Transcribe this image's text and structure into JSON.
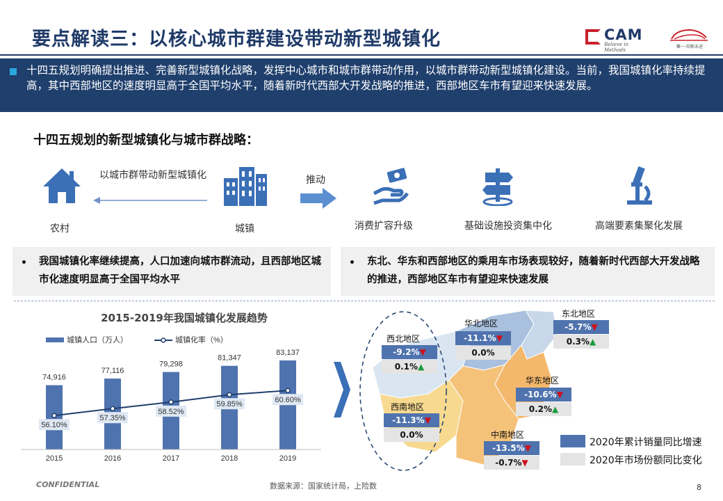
{
  "title": "要点解读三：以核心城市群建设带动新型城镇化",
  "logo": {
    "text": "CAM",
    "tagline": "Believe in Methods",
    "second_tagline": "聚一·闳新未迹"
  },
  "banner_text": "十四五规划明确提出推进、完善新型城镇化战略，发挥中心城市和城市群带动作用，以城市群带动新型城镇化建设。当前，我国城镇化率持续提高，其中西部地区的速度明显高于全国平均水平，随着新时代西部大开发战略的推进，西部地区车市有望迎来快速发展。",
  "section_title": "十四五规划的新型城镇化与城市群战略：",
  "flow": {
    "rural_label": "农村",
    "town_label": "城镇",
    "arrow_text": "以城市群带动新型城镇化",
    "push_label": "推动",
    "items": [
      "消费扩容升级",
      "基础设施投资集中化",
      "高端要素集聚化发展"
    ]
  },
  "notes": {
    "left": "我国城镇化率继续提高，人口加速向城市群流动，且西部地区城市化速度明显高于全国平均水平",
    "right": "东北、华东和西部地区的乘用车市场表现较好，随着新时代西部大开发战略的推进，西部地区车市有望迎来快速发展"
  },
  "chart_data": {
    "type": "bar",
    "title": "2015-2019年我国城镇化发展趋势",
    "categories": [
      "2015",
      "2016",
      "2017",
      "2018",
      "2019"
    ],
    "series": [
      {
        "name": "城镇人口（万人）",
        "type": "bar",
        "values": [
          74916,
          77116,
          79298,
          81347,
          83137
        ],
        "labels": [
          "74,916",
          "77,116",
          "79,298",
          "81,347",
          "83,137"
        ],
        "color": "#4f73ae"
      },
      {
        "name": "城镇化率（%）",
        "type": "line",
        "values": [
          56.1,
          57.35,
          58.52,
          59.85,
          60.6
        ],
        "labels": [
          "56.10%",
          "57.35%",
          "58.52%",
          "59.85%",
          "60.60%"
        ],
        "color": "#1f3f6c"
      }
    ],
    "xlabel": "",
    "ylabel": "",
    "legend_position": "top",
    "grid": false
  },
  "map": {
    "regions": [
      {
        "name": "东北地区",
        "sales_growth": "-5.7%",
        "sales_dir": "down",
        "share_change": "0.3%",
        "share_dir": "up"
      },
      {
        "name": "华北地区",
        "sales_growth": "-11.1%",
        "sales_dir": "down",
        "share_change": "0.0%",
        "share_dir": ""
      },
      {
        "name": "西北地区",
        "sales_growth": "-9.2%",
        "sales_dir": "down",
        "share_change": "0.1%",
        "share_dir": "up"
      },
      {
        "name": "华东地区",
        "sales_growth": "-10.6%",
        "sales_dir": "down",
        "share_change": "0.2%",
        "share_dir": "up"
      },
      {
        "name": "西南地区",
        "sales_growth": "-11.3%",
        "sales_dir": "down",
        "share_change": "0.0%",
        "share_dir": ""
      },
      {
        "name": "中南地区",
        "sales_growth": "-13.5%",
        "sales_dir": "down",
        "share_change": "-0.7%",
        "share_dir": "down"
      }
    ],
    "legend": [
      {
        "label": "2020年累计销量同比增速",
        "color": "#4f73ae"
      },
      {
        "label": "2020年市场份额同比变化",
        "color": "#e4e4e4"
      }
    ]
  },
  "footer": {
    "confidential": "CONFIDENTIAL",
    "source": "数据来源：国家统计局，上险数",
    "page": "8"
  }
}
